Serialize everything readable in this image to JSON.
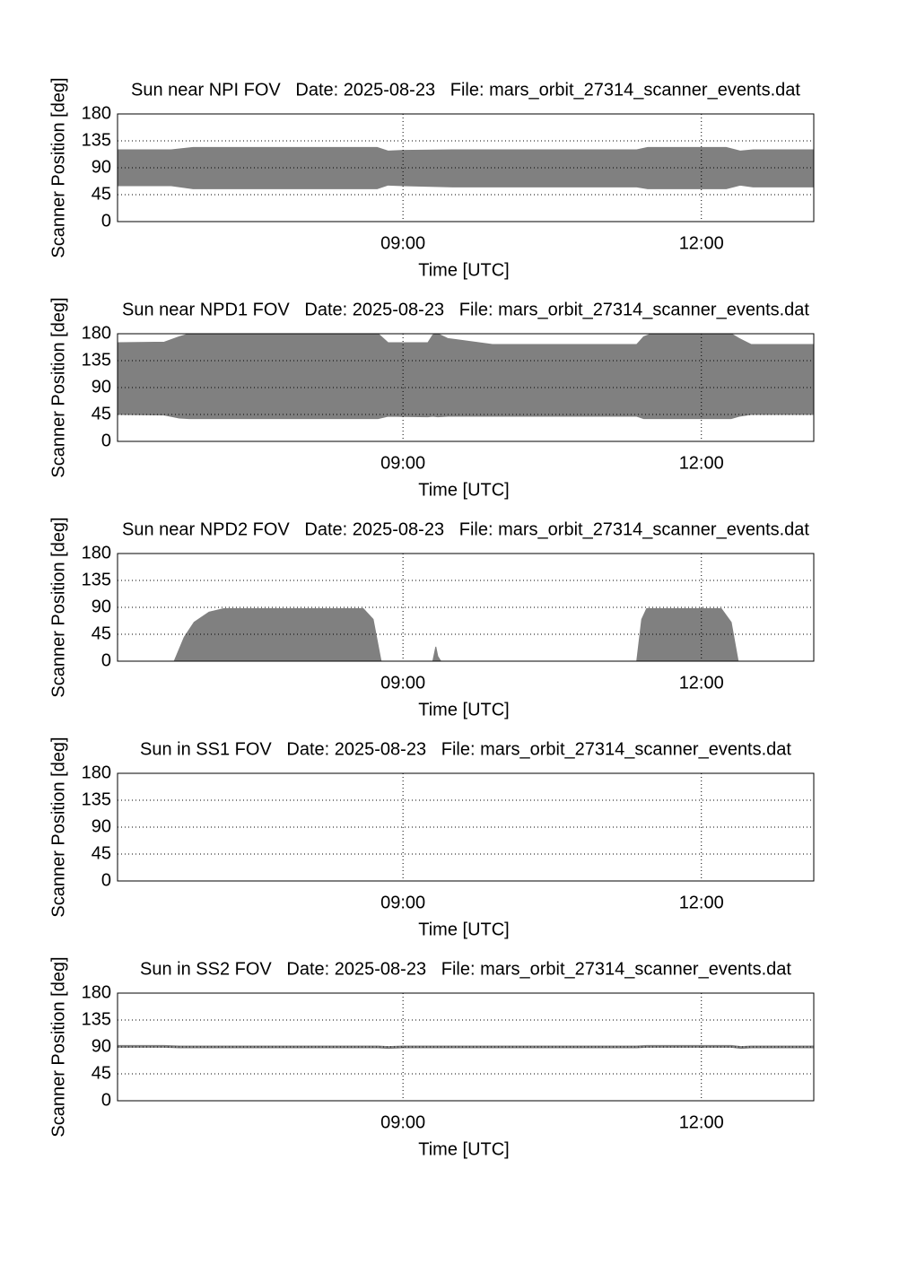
{
  "chart_data": [
    {
      "type": "area",
      "title": "Sun near NPI FOV   Date: 2025-08-23   File: mars_orbit_27314_scanner_events.dat",
      "xlabel": "Time [UTC]",
      "ylabel": "Scanner Position [deg]",
      "color": "#808080",
      "grid": true,
      "x": [
        6.13,
        6.67,
        6.89,
        8.74,
        8.85,
        9.0,
        9.5,
        11.35,
        11.46,
        12.25,
        12.39,
        12.52,
        13.13
      ],
      "high": [
        120,
        120,
        124,
        124,
        118,
        119,
        120,
        120,
        124,
        124,
        118,
        120,
        120
      ],
      "low": [
        60,
        60,
        55,
        55,
        61,
        60,
        58,
        58,
        55,
        55,
        61,
        58,
        58
      ],
      "xlim": [
        6.13,
        13.13
      ],
      "ylim": [
        0,
        180
      ],
      "xticks": [
        {
          "value": 9,
          "label": "09:00"
        },
        {
          "value": 12,
          "label": "12:00"
        }
      ],
      "yticks": [
        0,
        45,
        90,
        135,
        180
      ]
    },
    {
      "type": "area",
      "title": "Sun near NPD1 FOV   Date: 2025-08-23   File: mars_orbit_27314_scanner_events.dat",
      "xlabel": "Time [UTC]",
      "ylabel": "Scanner Position [deg]",
      "color": "#808080",
      "grid": true,
      "x": [
        6.13,
        6.6,
        6.75,
        6.85,
        8.75,
        8.85,
        9.25,
        9.3,
        9.35,
        9.45,
        9.9,
        11.35,
        11.42,
        11.5,
        12.3,
        12.38,
        12.5,
        13.13
      ],
      "high": [
        165,
        166,
        175,
        180,
        180,
        165,
        165,
        178,
        180,
        172,
        162,
        162,
        175,
        180,
        180,
        172,
        162,
        162
      ],
      "low": [
        45,
        44,
        39,
        38,
        38,
        42,
        41,
        42,
        41,
        42,
        42,
        42,
        38,
        38,
        38,
        42,
        45,
        45
      ],
      "xlim": [
        6.13,
        13.13
      ],
      "ylim": [
        0,
        180
      ],
      "xticks": [
        {
          "value": 9,
          "label": "09:00"
        },
        {
          "value": 12,
          "label": "12:00"
        }
      ],
      "yticks": [
        0,
        45,
        90,
        135,
        180
      ]
    },
    {
      "type": "area",
      "title": "Sun near NPD2 FOV   Date: 2025-08-23   File: mars_orbit_27314_scanner_events.dat",
      "xlabel": "Time [UTC]",
      "ylabel": "Scanner Position [deg]",
      "color": "#808080",
      "grid": true,
      "x": [
        6.13,
        6.7,
        6.8,
        6.9,
        7.05,
        7.2,
        8.6,
        8.7,
        8.78,
        9.3,
        9.33,
        9.35,
        9.38,
        11.35,
        11.4,
        11.45,
        12.2,
        12.3,
        12.37,
        13.13
      ],
      "high": [
        0,
        0,
        40,
        65,
        82,
        88,
        88,
        70,
        0,
        0,
        24,
        8,
        0,
        0,
        70,
        88,
        88,
        65,
        0,
        0
      ],
      "low": [
        0,
        0,
        0,
        0,
        0,
        0,
        0,
        0,
        0,
        0,
        0,
        0,
        0,
        0,
        0,
        0,
        0,
        0,
        0,
        0
      ],
      "xlim": [
        6.13,
        13.13
      ],
      "ylim": [
        0,
        180
      ],
      "xticks": [
        {
          "value": 9,
          "label": "09:00"
        },
        {
          "value": 12,
          "label": "12:00"
        }
      ],
      "yticks": [
        0,
        45,
        90,
        135,
        180
      ]
    },
    {
      "type": "area",
      "title": "Sun in SS1 FOV   Date: 2025-08-23   File: mars_orbit_27314_scanner_events.dat",
      "xlabel": "Time [UTC]",
      "ylabel": "Scanner Position [deg]",
      "color": "#808080",
      "grid": true,
      "x": [],
      "high": [],
      "low": [],
      "xlim": [
        6.13,
        13.13
      ],
      "ylim": [
        0,
        180
      ],
      "xticks": [
        {
          "value": 9,
          "label": "09:00"
        },
        {
          "value": 12,
          "label": "12:00"
        }
      ],
      "yticks": [
        0,
        45,
        90,
        135,
        180
      ]
    },
    {
      "type": "line",
      "title": "Sun in SS2 FOV   Date: 2025-08-23   File: mars_orbit_27314_scanner_events.dat",
      "xlabel": "Time [UTC]",
      "ylabel": "Scanner Position [deg]",
      "color": "#808080",
      "grid": true,
      "x": [
        6.13,
        6.6,
        6.75,
        8.75,
        8.85,
        9.0,
        11.35,
        11.45,
        12.3,
        12.4,
        12.5,
        13.13
      ],
      "values": [
        91,
        91,
        90,
        90,
        89,
        90,
        90,
        91,
        91,
        89,
        90,
        90
      ],
      "xlim": [
        6.13,
        13.13
      ],
      "ylim": [
        0,
        180
      ],
      "xticks": [
        {
          "value": 9,
          "label": "09:00"
        },
        {
          "value": 12,
          "label": "12:00"
        }
      ],
      "yticks": [
        0,
        45,
        90,
        135,
        180
      ]
    }
  ]
}
